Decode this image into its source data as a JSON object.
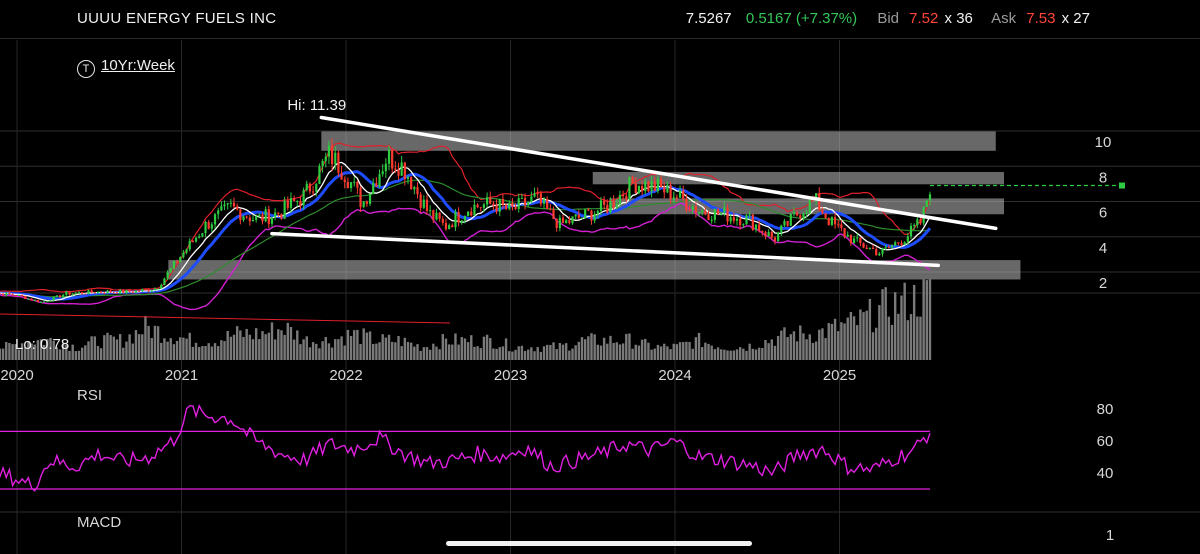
{
  "header": {
    "title": "UUUU ENERGY FUELS INC",
    "last": "7.5267",
    "change": "0.5167 (+7.37%)",
    "bid_label": "Bid",
    "bid": "7.52",
    "bid_size": "x 36",
    "ask_label": "Ask",
    "ask": "7.53",
    "ask_size": "x 27"
  },
  "period": {
    "icon": "T",
    "label": "10Yr:Week"
  },
  "colors": {
    "price_up": "#2ecc40",
    "price_down": "#ff3b30",
    "ma_fast": "#ffffff",
    "ma_mid": "#1e4dff",
    "ma_slow": "#2e8b2e",
    "band": "#e0202a",
    "band_lower": "#d020d0",
    "rsi": "#e020e0",
    "volume": "#7a7a7a",
    "trendline": "#ffffff",
    "zone": "#bdbdbd",
    "last_line": "#2ecc40"
  },
  "chart_data": [
    {
      "type": "candlestick",
      "title": "",
      "x_ticks": [
        "2020",
        "2021",
        "2022",
        "2023",
        "2024",
        "2025"
      ],
      "y_ticks": [
        2,
        4,
        6,
        8,
        10
      ],
      "ylim": [
        0,
        11.5
      ],
      "annotations": {
        "high": "Hi: 11.39",
        "low": "Lo: 0.78"
      },
      "closes": [
        {
          "x": 2019.8,
          "y": 1.5
        },
        {
          "x": 2020.0,
          "y": 1.3
        },
        {
          "x": 2020.15,
          "y": 0.9
        },
        {
          "x": 2020.3,
          "y": 1.4
        },
        {
          "x": 2020.5,
          "y": 1.5
        },
        {
          "x": 2020.7,
          "y": 1.5
        },
        {
          "x": 2020.85,
          "y": 1.7
        },
        {
          "x": 2021.0,
          "y": 3.6
        },
        {
          "x": 2021.15,
          "y": 5.3
        },
        {
          "x": 2021.3,
          "y": 6.3
        },
        {
          "x": 2021.45,
          "y": 5.6
        },
        {
          "x": 2021.6,
          "y": 6.0
        },
        {
          "x": 2021.75,
          "y": 7.0
        },
        {
          "x": 2021.9,
          "y": 9.3
        },
        {
          "x": 2022.0,
          "y": 8.2
        },
        {
          "x": 2022.1,
          "y": 6.5
        },
        {
          "x": 2022.25,
          "y": 9.2
        },
        {
          "x": 2022.35,
          "y": 8.6
        },
        {
          "x": 2022.5,
          "y": 6.0
        },
        {
          "x": 2022.6,
          "y": 5.2
        },
        {
          "x": 2022.75,
          "y": 6.3
        },
        {
          "x": 2022.9,
          "y": 6.5
        },
        {
          "x": 2023.0,
          "y": 6.1
        },
        {
          "x": 2023.15,
          "y": 6.8
        },
        {
          "x": 2023.3,
          "y": 5.3
        },
        {
          "x": 2023.45,
          "y": 5.8
        },
        {
          "x": 2023.6,
          "y": 6.4
        },
        {
          "x": 2023.75,
          "y": 7.7
        },
        {
          "x": 2023.9,
          "y": 7.4
        },
        {
          "x": 2024.0,
          "y": 7.0
        },
        {
          "x": 2024.15,
          "y": 6.1
        },
        {
          "x": 2024.3,
          "y": 5.9
        },
        {
          "x": 2024.45,
          "y": 5.6
        },
        {
          "x": 2024.6,
          "y": 4.5
        },
        {
          "x": 2024.75,
          "y": 6.0
        },
        {
          "x": 2024.85,
          "y": 6.7
        },
        {
          "x": 2024.95,
          "y": 5.4
        },
        {
          "x": 2025.1,
          "y": 4.3
        },
        {
          "x": 2025.25,
          "y": 3.7
        },
        {
          "x": 2025.4,
          "y": 4.6
        },
        {
          "x": 2025.5,
          "y": 5.5
        },
        {
          "x": 2025.55,
          "y": 7.53
        }
      ],
      "volume_index": [
        2,
        2,
        3,
        3,
        2,
        3,
        3,
        5,
        4,
        3,
        3,
        4,
        4,
        5,
        3,
        3,
        4,
        3,
        3,
        2,
        3,
        3,
        3,
        2,
        2,
        2,
        3,
        3,
        3,
        2,
        2,
        3,
        2,
        2,
        3,
        4,
        4,
        5,
        6,
        8,
        9,
        10
      ],
      "trendlines": [
        {
          "from": [
            2021.85,
            11.39
          ],
          "to": [
            2025.95,
            5.1
          ]
        },
        {
          "from": [
            2021.55,
            4.8
          ],
          "to": [
            2025.6,
            3.0
          ]
        }
      ],
      "zones": [
        {
          "from": 2021.85,
          "to": 2025.95,
          "lo": 9.5,
          "hi": 10.6
        },
        {
          "from": 2023.5,
          "to": 2026.0,
          "lo": 7.6,
          "hi": 8.3
        },
        {
          "from": 2023.6,
          "to": 2026.0,
          "lo": 5.9,
          "hi": 6.8
        },
        {
          "from": 2020.92,
          "to": 2026.1,
          "lo": 2.2,
          "hi": 3.3
        }
      ],
      "last_price": 7.53
    },
    {
      "type": "line",
      "title": "RSI",
      "y_ticks": [
        40,
        60,
        80
      ],
      "ylim": [
        20,
        90
      ],
      "bands": [
        30,
        66
      ],
      "series": [
        {
          "x": [
            2019.8,
            2019.95,
            2020.1,
            2020.2,
            2020.35,
            2020.5,
            2020.65,
            2020.8,
            2020.95,
            2021.05,
            2021.15,
            2021.3,
            2021.45,
            2021.6,
            2021.75,
            2021.9,
            2022.05,
            2022.2,
            2022.35,
            2022.5,
            2022.65,
            2022.8,
            2022.95,
            2023.1,
            2023.25,
            2023.4,
            2023.55,
            2023.7,
            2023.85,
            2024.0,
            2024.15,
            2024.3,
            2024.45,
            2024.6,
            2024.75,
            2024.9,
            2025.05,
            2025.2,
            2025.35,
            2025.45,
            2025.55
          ],
          "y": [
            42,
            38,
            32,
            48,
            44,
            52,
            47,
            50,
            60,
            80,
            76,
            74,
            60,
            52,
            48,
            58,
            55,
            62,
            52,
            46,
            48,
            52,
            50,
            56,
            44,
            48,
            52,
            58,
            54,
            60,
            50,
            48,
            45,
            40,
            52,
            55,
            44,
            42,
            50,
            54,
            66
          ]
        }
      ]
    },
    {
      "type": "line",
      "title": "MACD",
      "y_ticks": [
        1
      ],
      "ylim": [
        -1,
        1.5
      ],
      "series": []
    }
  ]
}
